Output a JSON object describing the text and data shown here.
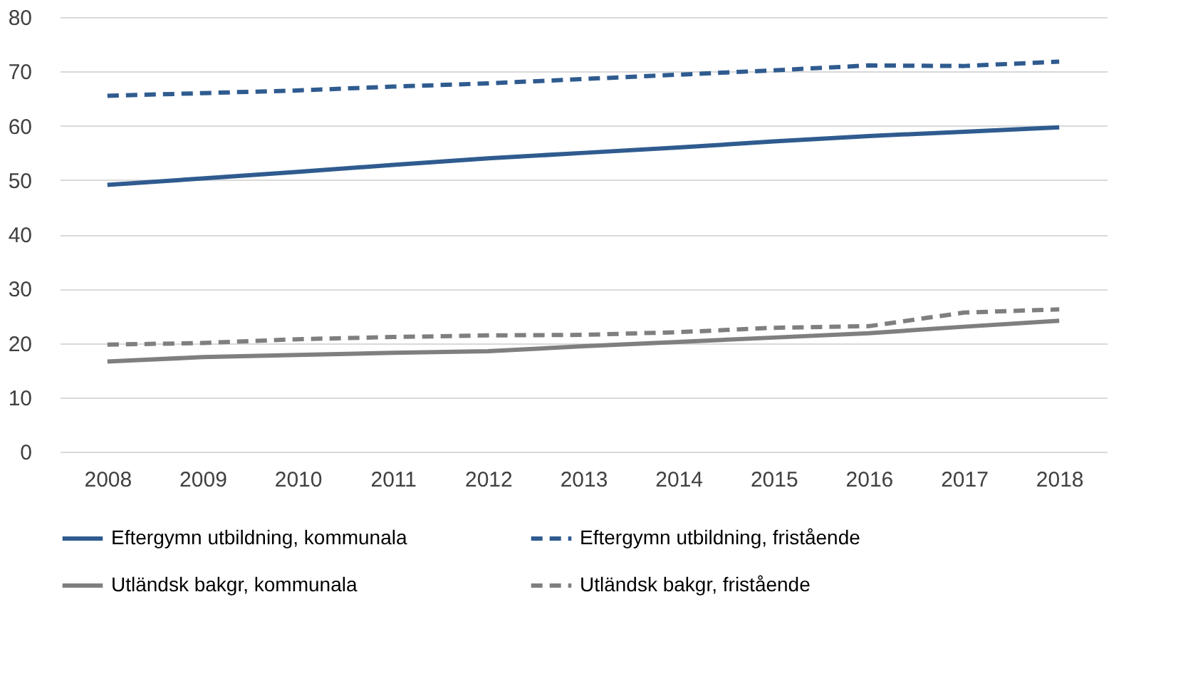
{
  "chart_data": {
    "type": "line",
    "categories": [
      "2008",
      "2009",
      "2010",
      "2011",
      "2012",
      "2013",
      "2014",
      "2015",
      "2016",
      "2017",
      "2018"
    ],
    "series": [
      {
        "name": "Eftergymn utbildning, kommunala",
        "color": "#2f5b8f",
        "line_style": "solid",
        "values": [
          49.1,
          50.3,
          51.5,
          52.8,
          54,
          55,
          56,
          57.1,
          58.1,
          58.9,
          59.7
        ]
      },
      {
        "name": "Eftergymn utbildning, fristående",
        "color": "#2f5b8f",
        "line_style": "dashed",
        "values": [
          65.5,
          66,
          66.5,
          67.2,
          67.8,
          68.6,
          69.4,
          70.2,
          71.1,
          71,
          71.8
        ]
      },
      {
        "name": "Utländsk bakgr, kommunala",
        "color": "#7f7f7f",
        "line_style": "solid",
        "values": [
          16.6,
          17.4,
          17.8,
          18.2,
          18.5,
          19.4,
          20.2,
          21,
          21.8,
          23,
          24.1
        ]
      },
      {
        "name": "Utländsk bakgr, fristående",
        "color": "#7f7f7f",
        "line_style": "dashed",
        "values": [
          19.7,
          20,
          20.7,
          21.1,
          21.4,
          21.5,
          22,
          22.8,
          23.1,
          25.6,
          26.2
        ]
      }
    ],
    "ylim": [
      0,
      80
    ],
    "yticks": [
      0,
      10,
      20,
      30,
      40,
      50,
      60,
      70,
      80
    ],
    "grid": "y",
    "legend": "bottom",
    "marker": "none"
  }
}
